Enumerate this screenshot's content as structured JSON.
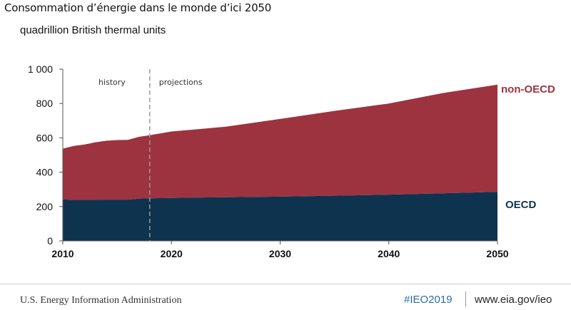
{
  "page_title": "Consommation d’énergie dans le monde d’ici 2050",
  "units": "quadrillion British thermal units",
  "footer": {
    "agency": "U.S. Energy Information Administration",
    "hashtag": "#IEO2019",
    "website": "www.eia.gov/ieo"
  },
  "colors": {
    "oecd": "#0e334f",
    "non_oecd": "#9e3340",
    "annotation": "#333333"
  },
  "chart_data": {
    "type": "area",
    "stacked": true,
    "title": "Consommation d’énergie dans le monde d’ici 2050",
    "ylabel": "quadrillion British thermal units",
    "xlabel": "",
    "xlim": [
      2010,
      2050
    ],
    "ylim": [
      0,
      1000
    ],
    "x_ticks": [
      2010,
      2020,
      2030,
      2040,
      2050
    ],
    "y_ticks": [
      0,
      200,
      400,
      600,
      800,
      1000
    ],
    "x_tick_labels": [
      "2010",
      "2020",
      "2030",
      "2040",
      "2050"
    ],
    "y_tick_labels": [
      "0",
      "200",
      "400",
      "600",
      "800",
      "1 000"
    ],
    "x": [
      2010,
      2011,
      2012,
      2013,
      2014,
      2015,
      2016,
      2017,
      2018,
      2020,
      2022,
      2025,
      2030,
      2035,
      2040,
      2045,
      2050
    ],
    "series": [
      {
        "name": "OECD",
        "values": [
          241,
          239,
          239,
          239,
          240,
          240,
          240,
          246,
          248,
          250,
          252,
          254,
          258,
          263,
          269,
          277,
          286
        ]
      },
      {
        "name": "non-OECD",
        "values": [
          296,
          314,
          322,
          335,
          343,
          347,
          348,
          360,
          367,
          387,
          396,
          411,
          452,
          494,
          531,
          584,
          624
        ]
      }
    ],
    "legend": {
      "non_oecd": "non-OECD",
      "oecd": "OECD"
    },
    "annotations": {
      "divider_year": 2018,
      "history": "history",
      "projections": "projections"
    },
    "grid": false
  }
}
